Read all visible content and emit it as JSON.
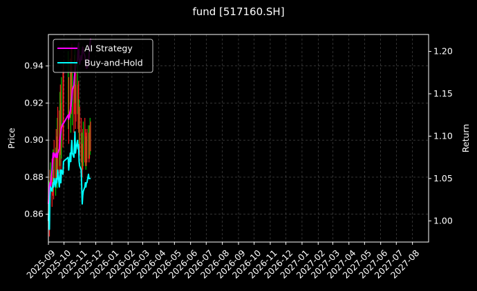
{
  "chart_data": {
    "type": "line",
    "title": "fund [517160.SH]",
    "ylabel_left": "Price",
    "ylabel_right": "Return",
    "xlim": [
      "2025-09-01",
      "2027-09-01"
    ],
    "ylim_left": [
      0.845,
      0.957
    ],
    "ylim_right": [
      0.975,
      1.22
    ],
    "left_ticks": [
      "0.86",
      "0.88",
      "0.90",
      "0.92",
      "0.94"
    ],
    "right_ticks": [
      "1.00",
      "1.05",
      "1.10",
      "1.15",
      "1.20"
    ],
    "x_ticks": [
      "2025-09",
      "2025-10",
      "2025-11",
      "2025-12",
      "2026-01",
      "2026-02",
      "2026-03",
      "2026-04",
      "2026-05",
      "2026-06",
      "2026-07",
      "2026-08",
      "2026-09",
      "2026-10",
      "2026-11",
      "2026-12",
      "2027-01",
      "2027-02",
      "2027-03",
      "2027-04",
      "2027-05",
      "2027-06",
      "2027-07",
      "2027-08"
    ],
    "grid": true,
    "legend_position": "top-left",
    "series": [
      {
        "name": "AI Strategy",
        "axis": "right",
        "color": "#ff00ff",
        "points": [
          [
            "2025-09-01",
            1.02
          ],
          [
            "2025-09-02",
            1.03
          ],
          [
            "2025-09-03",
            1.04
          ],
          [
            "2025-09-04",
            1.045
          ],
          [
            "2025-09-05",
            1.04
          ],
          [
            "2025-09-08",
            1.06
          ],
          [
            "2025-09-09",
            1.07
          ],
          [
            "2025-09-10",
            1.08
          ],
          [
            "2025-09-11",
            1.075
          ],
          [
            "2025-09-12",
            1.08
          ],
          [
            "2025-09-15",
            1.075
          ],
          [
            "2025-09-16",
            1.08
          ],
          [
            "2025-09-17",
            1.075
          ],
          [
            "2025-09-18",
            1.075
          ],
          [
            "2025-09-19",
            1.08
          ],
          [
            "2025-09-22",
            1.085
          ],
          [
            "2025-09-23",
            1.095
          ],
          [
            "2025-09-24",
            1.1
          ],
          [
            "2025-09-25",
            1.105
          ],
          [
            "2025-09-26",
            1.11
          ],
          [
            "2025-09-29",
            1.115
          ],
          [
            "2025-09-30",
            1.115
          ],
          [
            "2025-10-09",
            1.125
          ],
          [
            "2025-10-10",
            1.12
          ],
          [
            "2025-10-13",
            1.13
          ],
          [
            "2025-10-14",
            1.135
          ],
          [
            "2025-10-15",
            1.14
          ],
          [
            "2025-10-16",
            1.145
          ],
          [
            "2025-10-17",
            1.155
          ],
          [
            "2025-10-20",
            1.16
          ],
          [
            "2025-10-21",
            1.17
          ],
          [
            "2025-10-22",
            1.175
          ],
          [
            "2025-10-23",
            1.18
          ],
          [
            "2025-10-24",
            1.185
          ],
          [
            "2025-10-27",
            1.19
          ],
          [
            "2025-10-28",
            1.205
          ],
          [
            "2025-10-29",
            1.21
          ],
          [
            "2025-10-30",
            1.19
          ],
          [
            "2025-10-31",
            1.185
          ],
          [
            "2025-11-03",
            1.195
          ],
          [
            "2025-11-04",
            1.19
          ],
          [
            "2025-11-05",
            1.2
          ],
          [
            "2025-11-06",
            1.205
          ],
          [
            "2025-11-07",
            1.2
          ],
          [
            "2025-11-10",
            1.195
          ],
          [
            "2025-11-11",
            1.19
          ],
          [
            "2025-11-12",
            1.185
          ],
          [
            "2025-11-13",
            1.18
          ],
          [
            "2025-11-14",
            1.18
          ],
          [
            "2025-11-17",
            1.185
          ],
          [
            "2025-11-18",
            1.195
          ],
          [
            "2025-11-19",
            1.205
          ],
          [
            "2025-11-20",
            1.21
          ],
          [
            "2025-11-21",
            1.215
          ]
        ]
      },
      {
        "name": "Buy-and-Hold",
        "axis": "right",
        "color": "#00ffff",
        "points": [
          [
            "2025-09-01",
            1.0
          ],
          [
            "2025-09-02",
            1.02
          ],
          [
            "2025-09-03",
            0.99
          ],
          [
            "2025-09-04",
            1.03
          ],
          [
            "2025-09-05",
            1.04
          ],
          [
            "2025-09-08",
            1.035
          ],
          [
            "2025-09-09",
            1.04
          ],
          [
            "2025-09-10",
            1.045
          ],
          [
            "2025-09-11",
            1.04
          ],
          [
            "2025-09-12",
            1.05
          ],
          [
            "2025-09-15",
            1.04
          ],
          [
            "2025-09-16",
            1.05
          ],
          [
            "2025-09-17",
            1.045
          ],
          [
            "2025-09-18",
            1.05
          ],
          [
            "2025-09-19",
            1.06
          ],
          [
            "2025-09-22",
            1.04
          ],
          [
            "2025-09-23",
            1.05
          ],
          [
            "2025-09-24",
            1.06
          ],
          [
            "2025-09-25",
            1.045
          ],
          [
            "2025-09-26",
            1.06
          ],
          [
            "2025-09-29",
            1.055
          ],
          [
            "2025-09-30",
            1.07
          ],
          [
            "2025-10-09",
            1.075
          ],
          [
            "2025-10-10",
            1.06
          ],
          [
            "2025-10-13",
            1.08
          ],
          [
            "2025-10-14",
            1.07
          ],
          [
            "2025-10-15",
            1.085
          ],
          [
            "2025-10-16",
            1.095
          ],
          [
            "2025-10-17",
            1.08
          ],
          [
            "2025-10-20",
            1.075
          ],
          [
            "2025-10-21",
            1.09
          ],
          [
            "2025-10-22",
            1.105
          ],
          [
            "2025-10-23",
            1.08
          ],
          [
            "2025-10-24",
            1.085
          ],
          [
            "2025-10-27",
            1.095
          ],
          [
            "2025-10-28",
            1.085
          ],
          [
            "2025-10-29",
            1.09
          ],
          [
            "2025-10-30",
            1.07
          ],
          [
            "2025-10-31",
            1.065
          ],
          [
            "2025-11-03",
            1.06
          ],
          [
            "2025-11-04",
            1.04
          ],
          [
            "2025-11-05",
            1.02
          ],
          [
            "2025-11-06",
            1.03
          ],
          [
            "2025-11-07",
            1.035
          ],
          [
            "2025-11-10",
            1.04
          ],
          [
            "2025-11-11",
            1.045
          ],
          [
            "2025-11-12",
            1.04
          ],
          [
            "2025-11-13",
            1.045
          ],
          [
            "2025-11-14",
            1.045
          ],
          [
            "2025-11-17",
            1.055
          ],
          [
            "2025-11-18",
            1.05
          ],
          [
            "2025-11-19",
            1.05
          ],
          [
            "2025-11-20",
            1.05
          ],
          [
            "2025-11-21",
            1.05
          ]
        ]
      }
    ],
    "price_bars": {
      "axis": "left",
      "up_color": "#00cc00",
      "down_color": "#ff2020",
      "bars": [
        [
          "2025-09-01",
          0.855,
          0.87
        ],
        [
          "2025-09-02",
          0.862,
          0.878
        ],
        [
          "2025-09-03",
          0.848,
          0.866
        ],
        [
          "2025-09-04",
          0.866,
          0.884
        ],
        [
          "2025-09-05",
          0.872,
          0.888
        ],
        [
          "2025-09-08",
          0.864,
          0.89
        ],
        [
          "2025-09-09",
          0.87,
          0.88
        ],
        [
          "2025-09-10",
          0.872,
          0.895
        ],
        [
          "2025-09-11",
          0.868,
          0.884
        ],
        [
          "2025-09-12",
          0.876,
          0.9
        ],
        [
          "2025-09-15",
          0.87,
          0.896
        ],
        [
          "2025-09-16",
          0.876,
          0.906
        ],
        [
          "2025-09-17",
          0.88,
          0.902
        ],
        [
          "2025-09-18",
          0.874,
          0.912
        ],
        [
          "2025-09-19",
          0.884,
          0.918
        ],
        [
          "2025-09-22",
          0.882,
          0.916
        ],
        [
          "2025-09-23",
          0.886,
          0.926
        ],
        [
          "2025-09-24",
          0.892,
          0.93
        ],
        [
          "2025-09-25",
          0.884,
          0.92
        ],
        [
          "2025-09-26",
          0.89,
          0.934
        ],
        [
          "2025-09-29",
          0.896,
          0.938
        ],
        [
          "2025-09-30",
          0.9,
          0.942
        ],
        [
          "2025-10-09",
          0.906,
          0.948
        ],
        [
          "2025-10-10",
          0.898,
          0.934
        ],
        [
          "2025-10-13",
          0.912,
          0.944
        ],
        [
          "2025-10-14",
          0.904,
          0.938
        ],
        [
          "2025-10-15",
          0.914,
          0.95
        ],
        [
          "2025-10-16",
          0.918,
          0.952
        ],
        [
          "2025-10-17",
          0.908,
          0.936
        ],
        [
          "2025-10-20",
          0.904,
          0.93
        ],
        [
          "2025-10-21",
          0.914,
          0.946
        ],
        [
          "2025-10-22",
          0.92,
          0.95
        ],
        [
          "2025-10-23",
          0.906,
          0.93
        ],
        [
          "2025-10-24",
          0.91,
          0.936
        ],
        [
          "2025-10-27",
          0.914,
          0.942
        ],
        [
          "2025-10-28",
          0.906,
          0.93
        ],
        [
          "2025-10-29",
          0.904,
          0.932
        ],
        [
          "2025-10-30",
          0.896,
          0.922
        ],
        [
          "2025-10-31",
          0.892,
          0.918
        ],
        [
          "2025-11-03",
          0.888,
          0.912
        ],
        [
          "2025-11-04",
          0.882,
          0.904
        ],
        [
          "2025-11-05",
          0.88,
          0.898
        ],
        [
          "2025-11-06",
          0.884,
          0.906
        ],
        [
          "2025-11-07",
          0.886,
          0.91
        ],
        [
          "2025-11-10",
          0.888,
          0.912
        ],
        [
          "2025-11-11",
          0.886,
          0.906
        ],
        [
          "2025-11-12",
          0.884,
          0.902
        ],
        [
          "2025-11-13",
          0.886,
          0.904
        ],
        [
          "2025-11-14",
          0.888,
          0.906
        ],
        [
          "2025-11-17",
          0.89,
          0.908
        ],
        [
          "2025-11-18",
          0.888,
          0.904
        ],
        [
          "2025-11-19",
          0.89,
          0.908
        ],
        [
          "2025-11-20",
          0.892,
          0.912
        ],
        [
          "2025-11-21",
          0.894,
          0.91
        ]
      ]
    }
  }
}
